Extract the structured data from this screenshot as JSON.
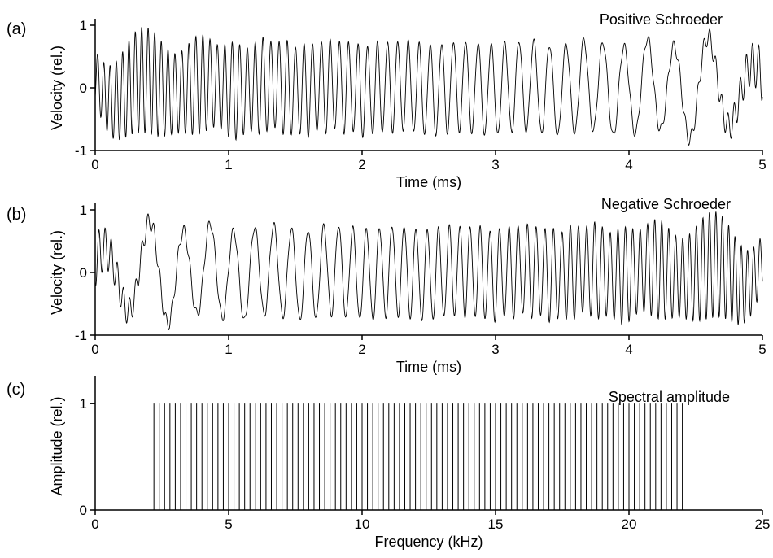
{
  "chart_data": [
    {
      "type": "line",
      "panel_label": "(a)",
      "title": "Positive Schroeder",
      "xlabel": "Time (ms)",
      "ylabel": "Velocity (rel.)",
      "xlim": [
        0,
        5
      ],
      "ylim": [
        -1,
        1
      ],
      "xticks": [
        "0",
        "1",
        "2",
        "3",
        "4",
        "5"
      ],
      "yticks": [
        "-1",
        "0",
        "1"
      ],
      "signal": {
        "sweep": "positive",
        "f_low_khz": 2.2,
        "f_high_khz": 22,
        "f_step_khz": 0.2
      },
      "grid": false
    },
    {
      "type": "line",
      "panel_label": "(b)",
      "title": "Negative Schroeder",
      "xlabel": "Time (ms)",
      "ylabel": "Velocity (rel.)",
      "xlim": [
        0,
        5
      ],
      "ylim": [
        -1,
        1
      ],
      "xticks": [
        "0",
        "1",
        "2",
        "3",
        "4",
        "5"
      ],
      "yticks": [
        "-1",
        "0",
        "1"
      ],
      "signal": {
        "sweep": "negative",
        "f_low_khz": 2.2,
        "f_high_khz": 22,
        "f_step_khz": 0.2
      },
      "grid": false
    },
    {
      "type": "bar",
      "panel_label": "(c)",
      "title": "Spectral amplitude",
      "xlabel": "Frequency (kHz)",
      "ylabel": "Amplitude (rel.)",
      "xlim": [
        0,
        25
      ],
      "ylim": [
        0,
        1.2
      ],
      "xticks": [
        "0",
        "5",
        "10",
        "15",
        "20",
        "25"
      ],
      "yticks": [
        "0",
        "1"
      ],
      "lines": {
        "start_khz": 2.2,
        "end_khz": 22,
        "step_khz": 0.2,
        "amplitude": 1
      },
      "grid": false
    }
  ]
}
